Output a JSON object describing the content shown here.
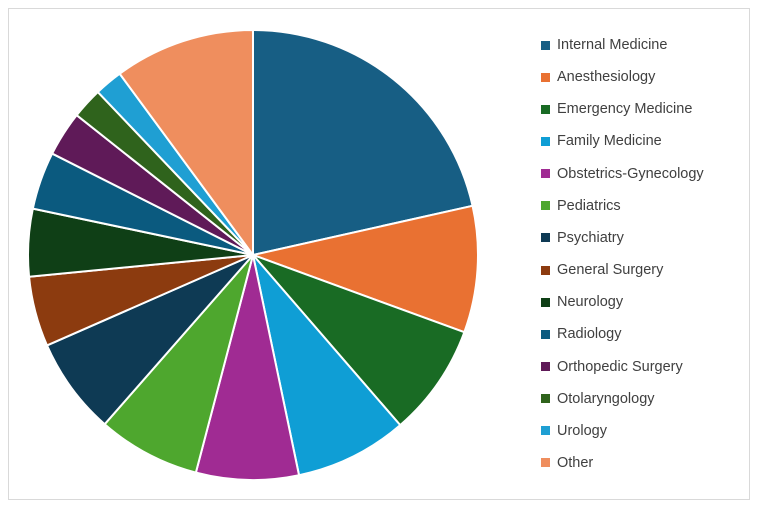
{
  "chart_data": {
    "type": "pie",
    "title": "",
    "legend_position": "right",
    "slices": [
      {
        "label": "Internal Medicine",
        "value": 21.3,
        "color": "#175E84"
      },
      {
        "label": "Anesthesiology",
        "value": 9.0,
        "color": "#E97132"
      },
      {
        "label": "Emergency Medicine",
        "value": 8.0,
        "color": "#196B24"
      },
      {
        "label": "Family Medicine",
        "value": 8.0,
        "color": "#0F9ED5"
      },
      {
        "label": "Obstetrics-Gynecology",
        "value": 7.3,
        "color": "#A02B93"
      },
      {
        "label": "Pediatrics",
        "value": 7.3,
        "color": "#4EA72E"
      },
      {
        "label": "Psychiatry",
        "value": 6.9,
        "color": "#0E3A54"
      },
      {
        "label": "General Surgery",
        "value": 5.0,
        "color": "#8C3B0F"
      },
      {
        "label": "Neurology",
        "value": 4.8,
        "color": "#0F3F16"
      },
      {
        "label": "Radiology",
        "value": 4.1,
        "color": "#0B5A7F"
      },
      {
        "label": "Orthopedic Surgery",
        "value": 3.2,
        "color": "#5F1A58"
      },
      {
        "label": "Otolaryngology",
        "value": 2.2,
        "color": "#2F631C"
      },
      {
        "label": "Urology",
        "value": 2.0,
        "color": "#1F9FD3"
      },
      {
        "label": "Other",
        "value": 10.0,
        "color": "#EF8E5E"
      }
    ]
  }
}
